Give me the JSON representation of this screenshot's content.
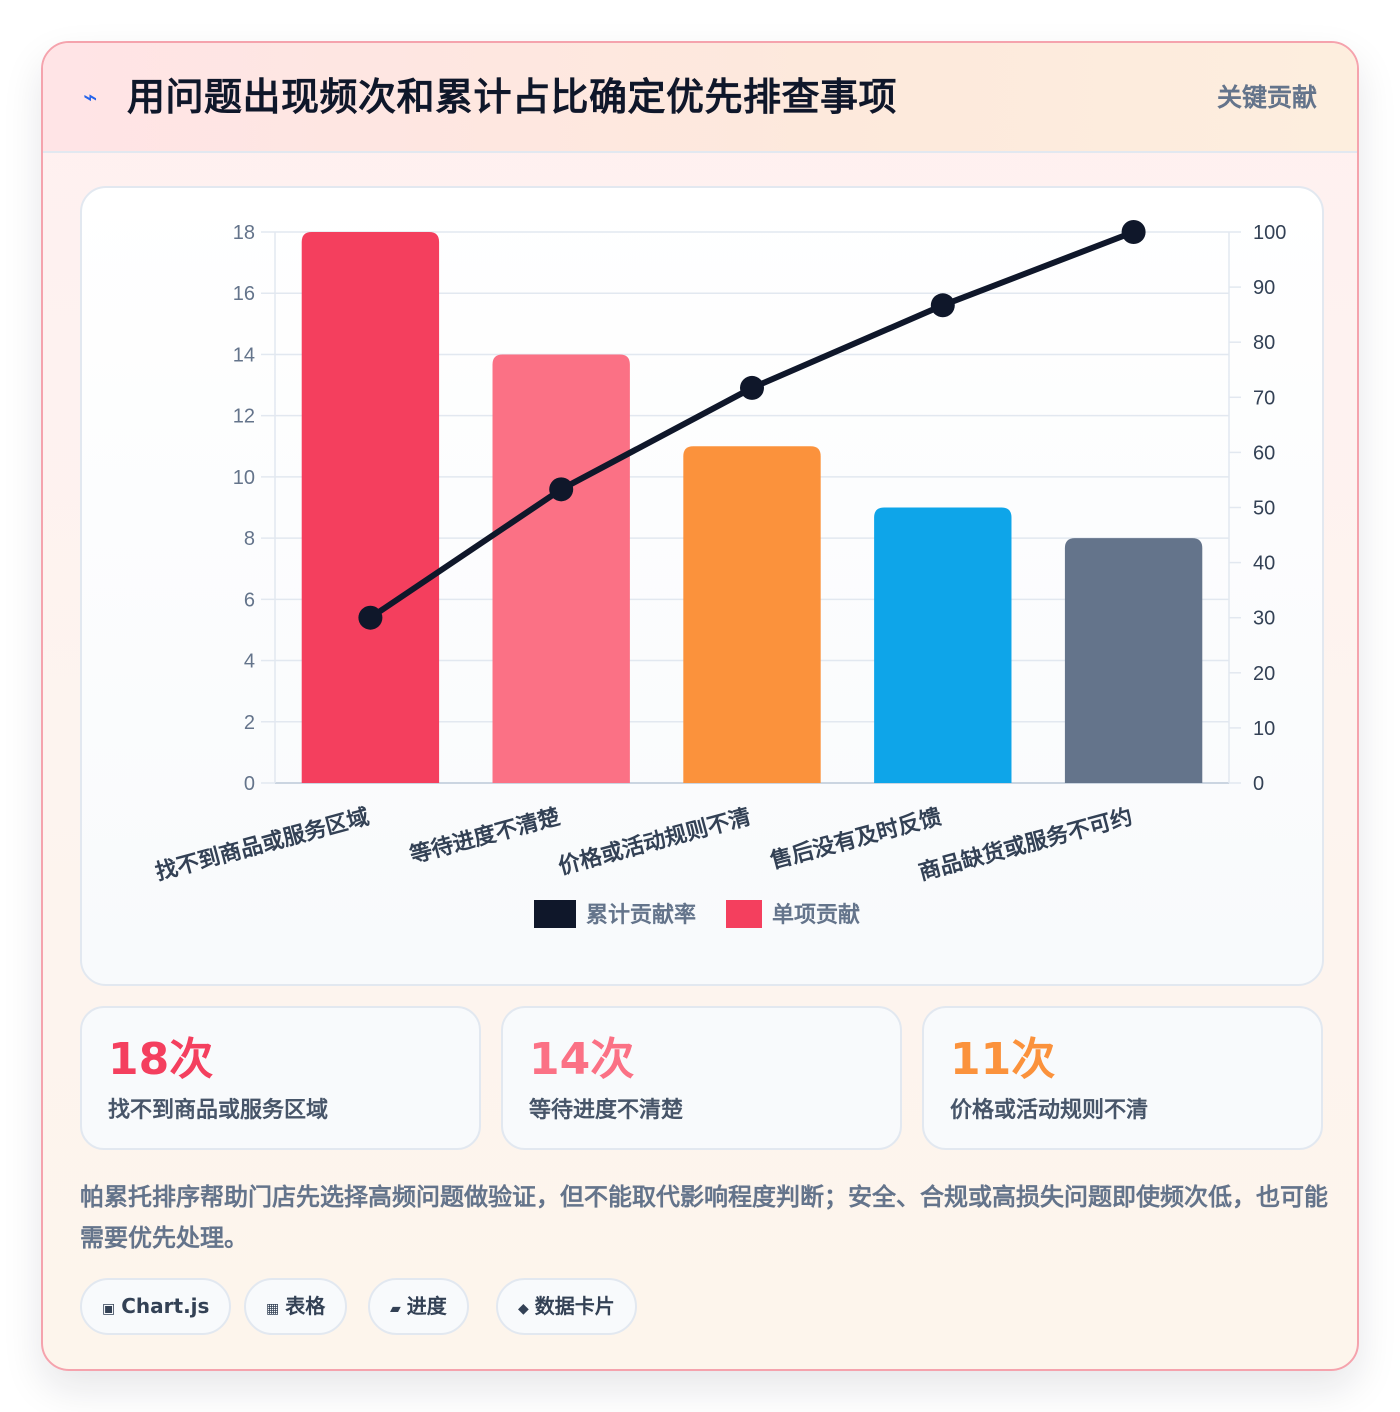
{
  "header": {
    "icon": "lightning-icon",
    "title": "用问题出现频次和累计占比确定优先排查事项",
    "tag": "关键贡献"
  },
  "chart_data": {
    "type": "bar",
    "categories": [
      "找不到商品或服务区域",
      "等待进度不清楚",
      "价格或活动规则不清",
      "售后没有及时反馈",
      "商品缺货或服务不可约"
    ],
    "series": [
      {
        "name": "单项贡献",
        "type": "bar",
        "axis": "left",
        "values": [
          18,
          14,
          11,
          9,
          8
        ],
        "colors": [
          "#f43f5e",
          "#fb7185",
          "#fb923c",
          "#0ea5e9",
          "#64748b"
        ]
      },
      {
        "name": "累计贡献率",
        "type": "line",
        "axis": "right",
        "values": [
          30,
          53.3,
          71.7,
          86.7,
          100
        ],
        "color": "#0f172a"
      }
    ],
    "y_left": {
      "min": 0,
      "max": 18,
      "ticks": [
        0,
        2,
        4,
        6,
        8,
        10,
        12,
        14,
        16,
        18
      ]
    },
    "y_right": {
      "min": 0,
      "max": 100,
      "ticks": [
        0,
        10,
        20,
        30,
        40,
        50,
        60,
        70,
        80,
        90,
        100
      ]
    },
    "legend": [
      {
        "label": "累计贡献率",
        "color": "#0f172a"
      },
      {
        "label": "单项贡献",
        "color": "#f43f5e"
      }
    ],
    "legend_position": "bottom",
    "grid": true
  },
  "stats": [
    {
      "value": "18次",
      "label": "找不到商品或服务区域",
      "color": "#f43f5e"
    },
    {
      "value": "14次",
      "label": "等待进度不清楚",
      "color": "#fb7185"
    },
    {
      "value": "11次",
      "label": "价格或活动规则不清",
      "color": "#fb923c"
    }
  ],
  "summary": "帕累托排序帮助门店先选择高频问题做验证，但不能取代影响程度判断；安全、合规或高损失问题即使频次低，也可能需要优先处理。",
  "chips": [
    {
      "icon": "chart-icon",
      "glyph": "▣",
      "label": "Chart.js"
    },
    {
      "icon": "table-icon",
      "glyph": "▦",
      "label": "表格"
    },
    {
      "icon": "progress-icon",
      "glyph": "▰",
      "label": "进度"
    },
    {
      "icon": "card-icon",
      "glyph": "◆",
      "label": "数据卡片"
    }
  ]
}
